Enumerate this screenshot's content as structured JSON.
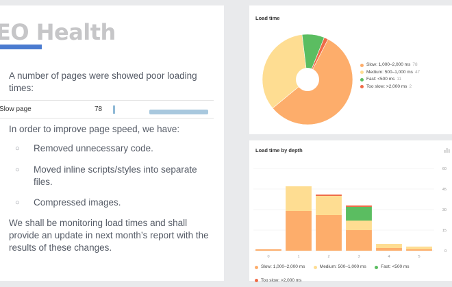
{
  "slide": {
    "title": "EO Health",
    "intro": "A number of pages were showed poor loading times:",
    "row": {
      "label": "Slow page",
      "value": "78"
    },
    "improve_intro": "In order to improve page speed, we have:",
    "bullets": [
      "Removed unnecessary code.",
      "Moved inline scripts/styles into separate files.",
      "Compressed images."
    ],
    "closing": "We shall be monitoring load times and shall provide an update in next month’s report with the results of these changes.",
    "accent_color": "#4a7bd0"
  },
  "load_time": {
    "title": "Load time",
    "legend": [
      {
        "label": "Slow: 1,000–2,000 ms",
        "count": "78",
        "color": "#fdad6b"
      },
      {
        "label": "Medium: 500–1,000 ms",
        "count": "47",
        "color": "#fedd92"
      },
      {
        "label": "Fast: <500 ms",
        "count": "11",
        "color": "#5bbd61"
      },
      {
        "label": "Too slow: >2,000 ms",
        "count": "2",
        "color": "#ef6b47"
      }
    ]
  },
  "load_time_by_depth": {
    "title": "Load time by depth",
    "legend": [
      {
        "label": "Slow: 1,000–2,000 ms",
        "color": "#fdad6b"
      },
      {
        "label": "Medium: 500–1,000 ms",
        "color": "#fedd92"
      },
      {
        "label": "Fast: <500 ms",
        "color": "#5bbd61"
      },
      {
        "label": "Too slow: >2,000 ms",
        "color": "#ef6b47"
      }
    ]
  },
  "chart_data": [
    {
      "type": "pie",
      "title": "Load time",
      "categories": [
        "Slow: 1,000–2,000 ms",
        "Medium: 500–1,000 ms",
        "Fast: <500 ms",
        "Too slow: >2,000 ms"
      ],
      "values": [
        78,
        47,
        11,
        2
      ],
      "donut": true
    },
    {
      "type": "bar",
      "stacked": true,
      "title": "Load time by depth",
      "categories": [
        "0",
        "1",
        "2",
        "3",
        "4",
        "5"
      ],
      "series": [
        {
          "name": "Slow: 1,000–2,000 ms",
          "values": [
            1,
            29,
            26,
            15,
            2,
            1
          ]
        },
        {
          "name": "Medium: 500–1,000 ms",
          "values": [
            0,
            18,
            14,
            7,
            3,
            2
          ]
        },
        {
          "name": "Fast: <500 ms",
          "values": [
            0,
            0,
            0,
            10,
            0,
            0
          ]
        },
        {
          "name": "Too slow: >2,000 ms",
          "values": [
            0,
            0,
            1,
            1,
            0,
            0
          ]
        }
      ],
      "yticks": [
        "0",
        "15",
        "30",
        "45",
        "60"
      ],
      "ylim": [
        0,
        60
      ],
      "grid": true
    }
  ]
}
